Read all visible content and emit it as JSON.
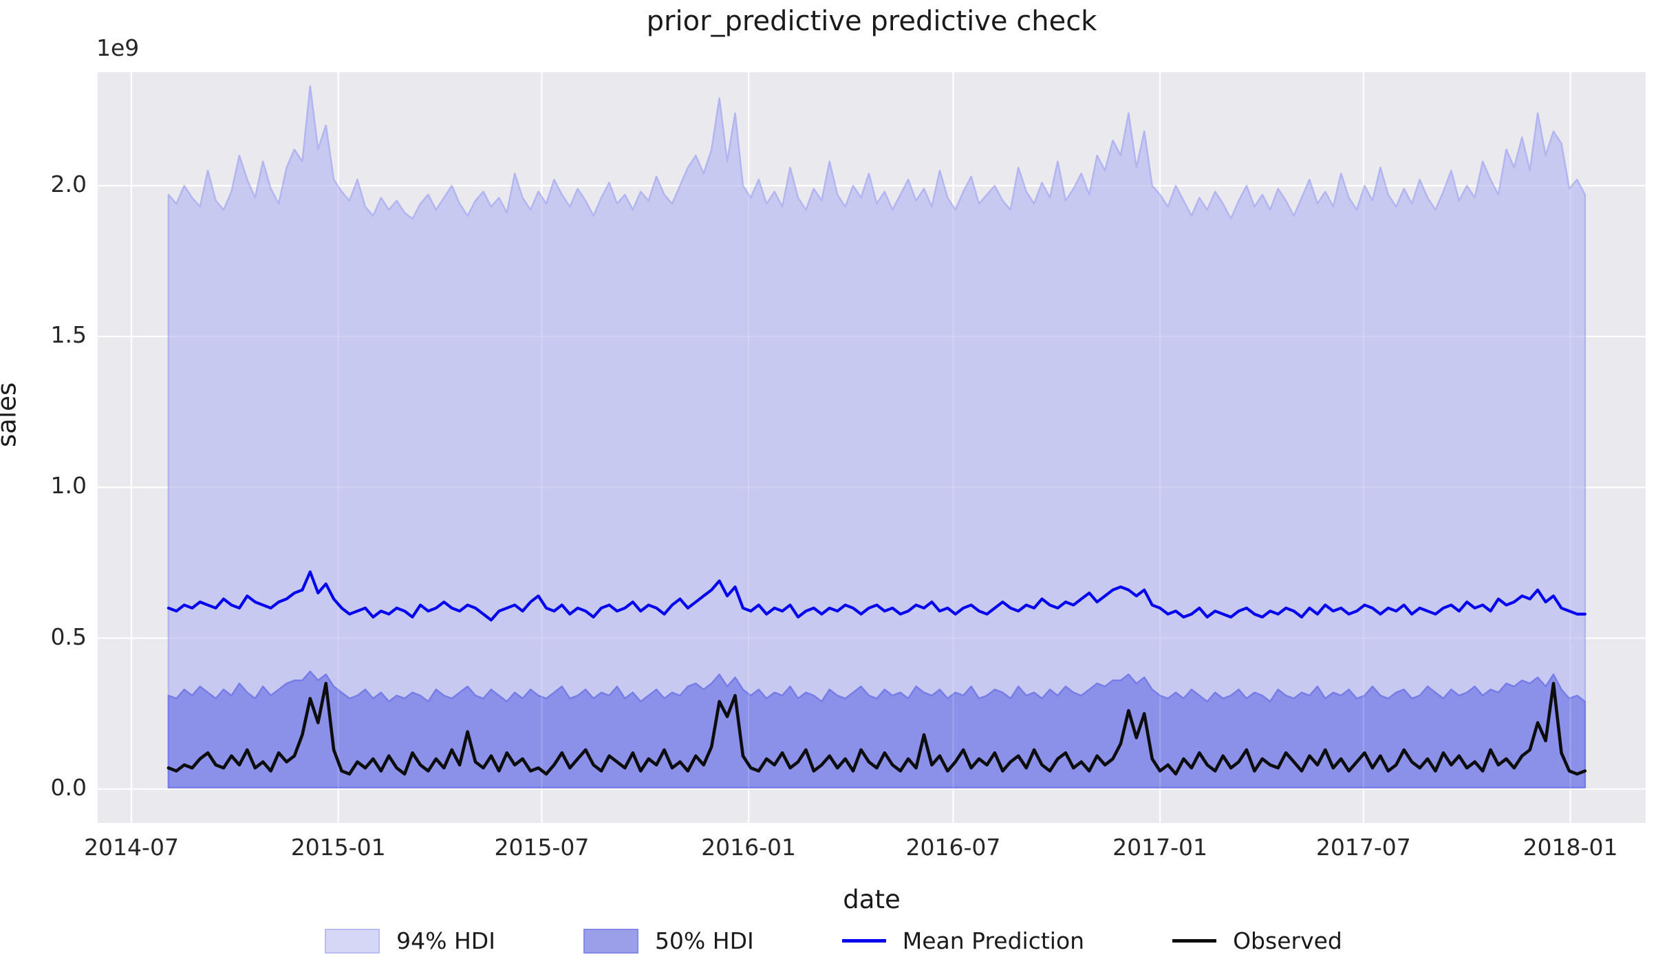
{
  "colors": {
    "figure_bg": "#ffffff",
    "axes_bg": "#e9e9ee",
    "grid": "#ffffff",
    "hdi94_fill": "#c7c9f1",
    "hdi94_edge": "#b2b5f0",
    "hdi50_fill": "#8b90e8",
    "hdi50_edge": "#767de6",
    "mean_line": "#0404ee",
    "observed_line": "#0d0d0d",
    "text": "#262626"
  },
  "chart_data": {
    "type": "area",
    "title": "prior_predictive predictive check",
    "xlabel": "date",
    "ylabel": "sales",
    "y_offset_text": "1e9",
    "unit_scale": 1000000000,
    "grid": true,
    "legend_position": "below",
    "x_axis_origin": "2014-07-01",
    "data_start_day": 33,
    "x_step_days": 7,
    "xlim_days": [
      -30,
      1347
    ],
    "ylim": [
      -0.112,
      2.376
    ],
    "xticks": [
      {
        "label": "2014-07",
        "day": 0
      },
      {
        "label": "2015-01",
        "day": 184
      },
      {
        "label": "2015-07",
        "day": 365
      },
      {
        "label": "2016-01",
        "day": 549
      },
      {
        "label": "2016-07",
        "day": 731
      },
      {
        "label": "2017-01",
        "day": 915
      },
      {
        "label": "2017-07",
        "day": 1096
      },
      {
        "label": "2018-01",
        "day": 1280
      }
    ],
    "yticks": [
      {
        "label": "0.0",
        "value": 0.0
      },
      {
        "label": "0.5",
        "value": 0.5
      },
      {
        "label": "1.0",
        "value": 1.0
      },
      {
        "label": "1.5",
        "value": 1.5
      },
      {
        "label": "2.0",
        "value": 2.0
      }
    ],
    "hdi_bottom": 0.005,
    "series": {
      "hdi94_upper": [
        1.97,
        1.94,
        2.0,
        1.96,
        1.93,
        2.05,
        1.95,
        1.92,
        1.98,
        2.1,
        2.02,
        1.96,
        2.08,
        1.99,
        1.94,
        2.06,
        2.12,
        2.08,
        2.33,
        2.12,
        2.2,
        2.02,
        1.98,
        1.95,
        2.02,
        1.93,
        1.9,
        1.96,
        1.92,
        1.95,
        1.91,
        1.89,
        1.94,
        1.97,
        1.92,
        1.96,
        2.0,
        1.94,
        1.9,
        1.95,
        1.98,
        1.93,
        1.96,
        1.91,
        2.04,
        1.96,
        1.92,
        1.98,
        1.94,
        2.02,
        1.97,
        1.93,
        1.99,
        1.95,
        1.9,
        1.96,
        2.01,
        1.94,
        1.97,
        1.92,
        1.98,
        1.95,
        2.03,
        1.97,
        1.94,
        2.0,
        2.06,
        2.1,
        2.04,
        2.12,
        2.29,
        2.08,
        2.24,
        2.0,
        1.96,
        2.02,
        1.94,
        1.98,
        1.93,
        2.06,
        1.96,
        1.92,
        1.99,
        1.95,
        2.08,
        1.97,
        1.93,
        2.0,
        1.96,
        2.04,
        1.94,
        1.98,
        1.92,
        1.97,
        2.02,
        1.95,
        1.99,
        1.93,
        2.05,
        1.96,
        1.92,
        1.98,
        2.03,
        1.94,
        1.97,
        2.0,
        1.95,
        1.92,
        2.06,
        1.98,
        1.94,
        2.01,
        1.96,
        2.08,
        1.95,
        1.99,
        2.04,
        1.97,
        2.1,
        2.05,
        2.15,
        2.1,
        2.24,
        2.06,
        2.18,
        2.0,
        1.97,
        1.93,
        2.0,
        1.95,
        1.9,
        1.96,
        1.92,
        1.98,
        1.94,
        1.89,
        1.95,
        2.0,
        1.93,
        1.97,
        1.92,
        1.99,
        1.95,
        1.9,
        1.96,
        2.02,
        1.94,
        1.98,
        1.93,
        2.04,
        1.96,
        1.92,
        2.0,
        1.95,
        2.06,
        1.97,
        1.93,
        1.99,
        1.94,
        2.02,
        1.96,
        1.92,
        1.98,
        2.05,
        1.95,
        2.0,
        1.96,
        2.08,
        2.02,
        1.97,
        2.12,
        2.06,
        2.16,
        2.05,
        2.24,
        2.1,
        2.18,
        2.14,
        1.99,
        2.02,
        1.97
      ],
      "hdi50_upper": [
        0.31,
        0.3,
        0.33,
        0.31,
        0.34,
        0.32,
        0.3,
        0.33,
        0.31,
        0.35,
        0.32,
        0.3,
        0.34,
        0.31,
        0.33,
        0.35,
        0.36,
        0.36,
        0.39,
        0.36,
        0.38,
        0.34,
        0.32,
        0.3,
        0.31,
        0.33,
        0.3,
        0.32,
        0.29,
        0.31,
        0.3,
        0.32,
        0.31,
        0.29,
        0.33,
        0.31,
        0.3,
        0.32,
        0.34,
        0.31,
        0.3,
        0.33,
        0.31,
        0.29,
        0.32,
        0.3,
        0.33,
        0.31,
        0.3,
        0.32,
        0.34,
        0.3,
        0.31,
        0.33,
        0.3,
        0.32,
        0.31,
        0.34,
        0.3,
        0.32,
        0.29,
        0.31,
        0.33,
        0.3,
        0.32,
        0.31,
        0.34,
        0.35,
        0.33,
        0.35,
        0.38,
        0.34,
        0.37,
        0.33,
        0.31,
        0.33,
        0.3,
        0.32,
        0.31,
        0.34,
        0.3,
        0.32,
        0.31,
        0.29,
        0.33,
        0.31,
        0.3,
        0.32,
        0.34,
        0.31,
        0.3,
        0.33,
        0.31,
        0.32,
        0.3,
        0.34,
        0.32,
        0.31,
        0.33,
        0.3,
        0.32,
        0.31,
        0.34,
        0.3,
        0.31,
        0.33,
        0.32,
        0.3,
        0.34,
        0.31,
        0.32,
        0.3,
        0.33,
        0.31,
        0.34,
        0.32,
        0.31,
        0.33,
        0.35,
        0.34,
        0.36,
        0.36,
        0.38,
        0.35,
        0.37,
        0.33,
        0.31,
        0.3,
        0.32,
        0.3,
        0.33,
        0.31,
        0.29,
        0.32,
        0.3,
        0.31,
        0.33,
        0.3,
        0.32,
        0.31,
        0.29,
        0.33,
        0.31,
        0.3,
        0.32,
        0.31,
        0.34,
        0.3,
        0.32,
        0.31,
        0.33,
        0.3,
        0.31,
        0.34,
        0.31,
        0.3,
        0.32,
        0.33,
        0.3,
        0.31,
        0.34,
        0.32,
        0.3,
        0.33,
        0.31,
        0.32,
        0.34,
        0.31,
        0.33,
        0.32,
        0.35,
        0.34,
        0.36,
        0.35,
        0.37,
        0.34,
        0.38,
        0.33,
        0.3,
        0.31,
        0.29
      ],
      "mean": [
        0.6,
        0.59,
        0.61,
        0.6,
        0.62,
        0.61,
        0.6,
        0.63,
        0.61,
        0.6,
        0.64,
        0.62,
        0.61,
        0.6,
        0.62,
        0.63,
        0.65,
        0.66,
        0.72,
        0.65,
        0.68,
        0.63,
        0.6,
        0.58,
        0.59,
        0.6,
        0.57,
        0.59,
        0.58,
        0.6,
        0.59,
        0.57,
        0.61,
        0.59,
        0.6,
        0.62,
        0.6,
        0.59,
        0.61,
        0.6,
        0.58,
        0.56,
        0.59,
        0.6,
        0.61,
        0.59,
        0.62,
        0.64,
        0.6,
        0.59,
        0.61,
        0.58,
        0.6,
        0.59,
        0.57,
        0.6,
        0.61,
        0.59,
        0.6,
        0.62,
        0.59,
        0.61,
        0.6,
        0.58,
        0.61,
        0.63,
        0.6,
        0.62,
        0.64,
        0.66,
        0.69,
        0.64,
        0.67,
        0.6,
        0.59,
        0.61,
        0.58,
        0.6,
        0.59,
        0.61,
        0.57,
        0.59,
        0.6,
        0.58,
        0.6,
        0.59,
        0.61,
        0.6,
        0.58,
        0.6,
        0.61,
        0.59,
        0.6,
        0.58,
        0.59,
        0.61,
        0.6,
        0.62,
        0.59,
        0.6,
        0.58,
        0.6,
        0.61,
        0.59,
        0.58,
        0.6,
        0.62,
        0.6,
        0.59,
        0.61,
        0.6,
        0.63,
        0.61,
        0.6,
        0.62,
        0.61,
        0.63,
        0.65,
        0.62,
        0.64,
        0.66,
        0.67,
        0.66,
        0.64,
        0.66,
        0.61,
        0.6,
        0.58,
        0.59,
        0.57,
        0.58,
        0.6,
        0.57,
        0.59,
        0.58,
        0.57,
        0.59,
        0.6,
        0.58,
        0.57,
        0.59,
        0.58,
        0.6,
        0.59,
        0.57,
        0.6,
        0.58,
        0.61,
        0.59,
        0.6,
        0.58,
        0.59,
        0.61,
        0.6,
        0.58,
        0.6,
        0.59,
        0.61,
        0.58,
        0.6,
        0.59,
        0.58,
        0.6,
        0.61,
        0.59,
        0.62,
        0.6,
        0.61,
        0.59,
        0.63,
        0.61,
        0.62,
        0.64,
        0.63,
        0.66,
        0.62,
        0.64,
        0.6,
        0.59,
        0.58,
        0.58
      ],
      "observed": [
        0.07,
        0.06,
        0.08,
        0.07,
        0.1,
        0.12,
        0.08,
        0.07,
        0.11,
        0.08,
        0.13,
        0.07,
        0.09,
        0.06,
        0.12,
        0.09,
        0.11,
        0.18,
        0.3,
        0.22,
        0.35,
        0.13,
        0.06,
        0.05,
        0.09,
        0.07,
        0.1,
        0.06,
        0.11,
        0.07,
        0.05,
        0.12,
        0.08,
        0.06,
        0.1,
        0.07,
        0.13,
        0.08,
        0.19,
        0.09,
        0.07,
        0.11,
        0.06,
        0.12,
        0.08,
        0.1,
        0.06,
        0.07,
        0.05,
        0.08,
        0.12,
        0.07,
        0.1,
        0.13,
        0.08,
        0.06,
        0.11,
        0.09,
        0.07,
        0.12,
        0.06,
        0.1,
        0.08,
        0.13,
        0.07,
        0.09,
        0.06,
        0.11,
        0.08,
        0.14,
        0.29,
        0.24,
        0.31,
        0.11,
        0.07,
        0.06,
        0.1,
        0.08,
        0.12,
        0.07,
        0.09,
        0.13,
        0.06,
        0.08,
        0.11,
        0.07,
        0.1,
        0.06,
        0.13,
        0.09,
        0.07,
        0.12,
        0.08,
        0.06,
        0.1,
        0.07,
        0.18,
        0.08,
        0.11,
        0.06,
        0.09,
        0.13,
        0.07,
        0.1,
        0.08,
        0.12,
        0.06,
        0.09,
        0.11,
        0.07,
        0.13,
        0.08,
        0.06,
        0.1,
        0.12,
        0.07,
        0.09,
        0.06,
        0.11,
        0.08,
        0.1,
        0.15,
        0.26,
        0.17,
        0.25,
        0.1,
        0.06,
        0.08,
        0.05,
        0.1,
        0.07,
        0.12,
        0.08,
        0.06,
        0.11,
        0.07,
        0.09,
        0.13,
        0.06,
        0.1,
        0.08,
        0.07,
        0.12,
        0.09,
        0.06,
        0.11,
        0.08,
        0.13,
        0.07,
        0.1,
        0.06,
        0.09,
        0.12,
        0.07,
        0.11,
        0.06,
        0.08,
        0.13,
        0.09,
        0.07,
        0.1,
        0.06,
        0.12,
        0.08,
        0.11,
        0.07,
        0.09,
        0.06,
        0.13,
        0.08,
        0.1,
        0.07,
        0.11,
        0.13,
        0.22,
        0.16,
        0.35,
        0.12,
        0.06,
        0.05,
        0.06
      ]
    },
    "legend": [
      {
        "label": "94% HDI",
        "type": "patch",
        "fill": "#d6d7f7",
        "edge": "#b9bcf2"
      },
      {
        "label": "50% HDI",
        "type": "patch",
        "fill": "#9b9fe9",
        "edge": "#8589e6"
      },
      {
        "label": "Mean Prediction",
        "type": "line",
        "color": "#0404ee"
      },
      {
        "label": "Observed",
        "type": "line",
        "color": "#0d0d0d"
      }
    ]
  }
}
